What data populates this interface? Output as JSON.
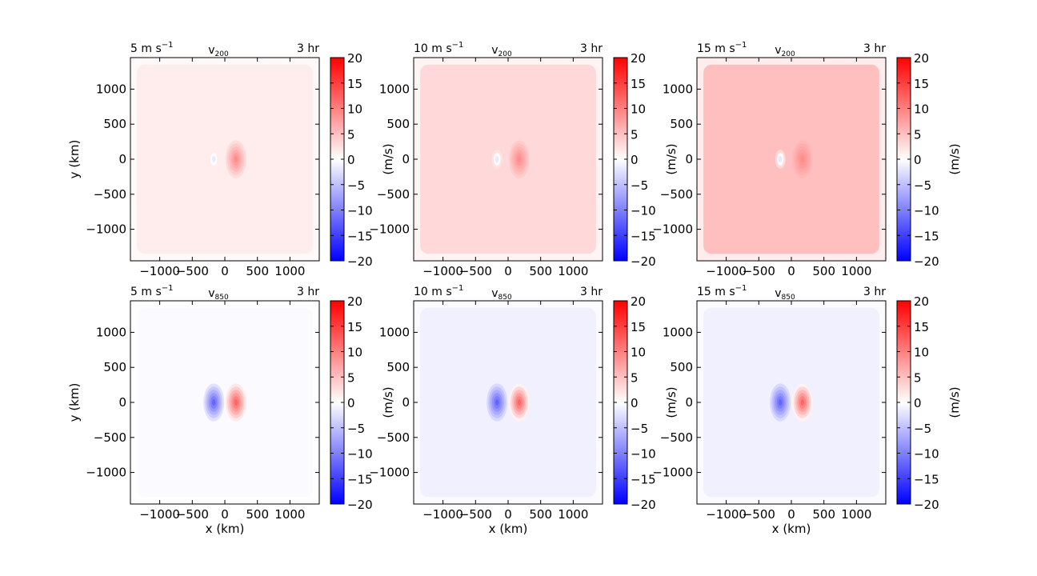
{
  "figure": {
    "colorbar_ticks": [
      "20",
      "15",
      "10",
      "5",
      "0",
      "−5",
      "−10",
      "−15",
      "−20"
    ],
    "colorbar_label": "(m/s)",
    "x_ticks": [
      "−1000",
      "−500",
      "0",
      "500",
      "1000"
    ],
    "y_ticks": [
      "1000",
      "500",
      "0",
      "−500",
      "−1000"
    ],
    "ylabel": "y (km)",
    "xlabel": "x (km)",
    "colormap": "bwr",
    "color_low": "#0000ff",
    "color_mid": "#ffffff",
    "color_high": "#ff0000"
  },
  "chart_data": [
    {
      "type": "heatmap",
      "panel": "row1-col1",
      "title_left": "5 m s",
      "title_sup": "−1",
      "title_center": "v",
      "title_sub": "200",
      "title_right": "3 hr",
      "xlim": [
        -1450,
        1450
      ],
      "ylim": [
        -1450,
        1450
      ],
      "clim": [
        -20,
        20
      ],
      "domain_value": 1.5,
      "dipole_amplitude": 9,
      "has_ylabel": true,
      "has_xlabel": false
    },
    {
      "type": "heatmap",
      "panel": "row1-col2",
      "title_left": "10 m s",
      "title_sup": "−1",
      "title_center": "v",
      "title_sub": "200",
      "title_right": "3 hr",
      "xlim": [
        -1450,
        1450
      ],
      "ylim": [
        -1450,
        1450
      ],
      "clim": [
        -20,
        20
      ],
      "domain_value": 3,
      "dipole_amplitude": 9,
      "has_ylabel": false,
      "has_xlabel": false
    },
    {
      "type": "heatmap",
      "panel": "row1-col3",
      "title_left": "15 m s",
      "title_sup": "−1",
      "title_center": "v",
      "title_sub": "200",
      "title_right": "3 hr",
      "xlim": [
        -1450,
        1450
      ],
      "ylim": [
        -1450,
        1450
      ],
      "clim": [
        -20,
        20
      ],
      "domain_value": 5,
      "dipole_amplitude": 9,
      "has_ylabel": false,
      "has_xlabel": false
    },
    {
      "type": "heatmap",
      "panel": "row2-col1",
      "title_left": "5 m s",
      "title_sup": "−1",
      "title_center": "v",
      "title_sub": "850",
      "title_right": "3 hr",
      "xlim": [
        -1450,
        1450
      ],
      "ylim": [
        -1450,
        1450
      ],
      "clim": [
        -20,
        20
      ],
      "domain_value": -0.3,
      "dipole_amplitude": 12,
      "has_ylabel": true,
      "has_xlabel": true
    },
    {
      "type": "heatmap",
      "panel": "row2-col2",
      "title_left": "10 m s",
      "title_sup": "−1",
      "title_center": "v",
      "title_sub": "850",
      "title_right": "3 hr",
      "xlim": [
        -1450,
        1450
      ],
      "ylim": [
        -1450,
        1450
      ],
      "clim": [
        -20,
        20
      ],
      "domain_value": -1.2,
      "dipole_amplitude": 12,
      "has_ylabel": false,
      "has_xlabel": true
    },
    {
      "type": "heatmap",
      "panel": "row2-col3",
      "title_left": "15 m s",
      "title_sup": "−1",
      "title_center": "v",
      "title_sub": "850",
      "title_right": "3 hr",
      "xlim": [
        -1450,
        1450
      ],
      "ylim": [
        -1450,
        1450
      ],
      "clim": [
        -20,
        20
      ],
      "domain_value": -1.2,
      "dipole_amplitude": 12,
      "has_ylabel": false,
      "has_xlabel": true
    }
  ]
}
